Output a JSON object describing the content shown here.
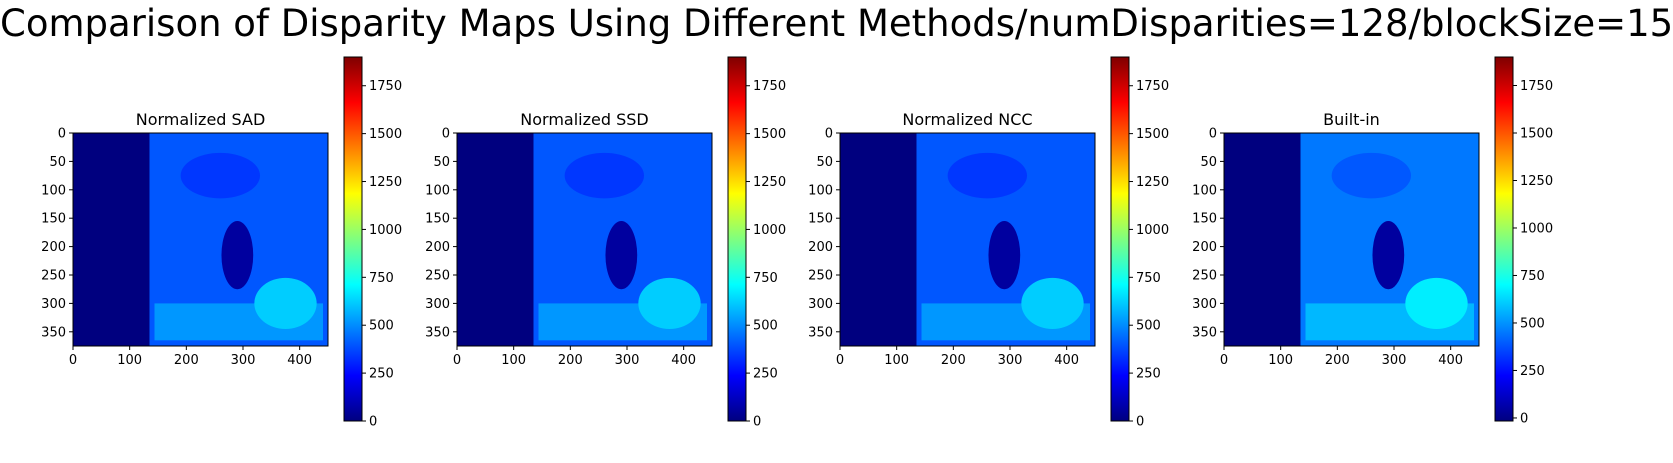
{
  "figure": {
    "suptitle": "Comparison of Disparity Maps Using Different Methods/numDisparities=128/blockSize=15",
    "colormap": "jet",
    "colormap_stops": [
      "#00007f",
      "#0000ff",
      "#007fff",
      "#00ffff",
      "#7fff7f",
      "#ffff00",
      "#ff7f00",
      "#ff0000",
      "#7f0000"
    ]
  },
  "chart_data": [
    {
      "type": "heatmap",
      "title": "Normalized SAD",
      "x_ticks": [
        0,
        100,
        200,
        300,
        400
      ],
      "y_ticks": [
        0,
        50,
        100,
        150,
        200,
        250,
        300,
        350
      ],
      "xlim": [
        0,
        450
      ],
      "ylim": [
        375,
        0
      ],
      "colorbar": {
        "vmin": 0,
        "vmax": 1900,
        "ticks": [
          0,
          250,
          500,
          750,
          1000,
          1250,
          1500,
          1750
        ]
      },
      "background_value": 0,
      "typical_value": 400,
      "invalid_left_columns": 135
    },
    {
      "type": "heatmap",
      "title": "Normalized SSD",
      "x_ticks": [
        0,
        100,
        200,
        300,
        400
      ],
      "y_ticks": [
        0,
        50,
        100,
        150,
        200,
        250,
        300,
        350
      ],
      "xlim": [
        0,
        450
      ],
      "ylim": [
        375,
        0
      ],
      "colorbar": {
        "vmin": 0,
        "vmax": 1900,
        "ticks": [
          0,
          250,
          500,
          750,
          1000,
          1250,
          1500,
          1750
        ]
      },
      "background_value": 0,
      "typical_value": 400,
      "invalid_left_columns": 135
    },
    {
      "type": "heatmap",
      "title": "Normalized NCC",
      "x_ticks": [
        0,
        100,
        200,
        300,
        400
      ],
      "y_ticks": [
        0,
        50,
        100,
        150,
        200,
        250,
        300,
        350
      ],
      "xlim": [
        0,
        450
      ],
      "ylim": [
        375,
        0
      ],
      "colorbar": {
        "vmin": 0,
        "vmax": 1900,
        "ticks": [
          0,
          250,
          500,
          750,
          1000,
          1250,
          1500,
          1750
        ]
      },
      "background_value": 0,
      "typical_value": 400,
      "invalid_left_columns": 135
    },
    {
      "type": "heatmap",
      "title": "Built-in",
      "x_ticks": [
        0,
        100,
        200,
        300,
        400
      ],
      "y_ticks": [
        0,
        50,
        100,
        150,
        200,
        250,
        300,
        350
      ],
      "xlim": [
        0,
        450
      ],
      "ylim": [
        375,
        0
      ],
      "colorbar": {
        "vmin": -16,
        "vmax": 1900,
        "ticks": [
          0,
          250,
          500,
          750,
          1000,
          1250,
          1500,
          1750
        ]
      },
      "background_value": -16,
      "typical_value": 450,
      "invalid_left_columns": 135
    }
  ]
}
